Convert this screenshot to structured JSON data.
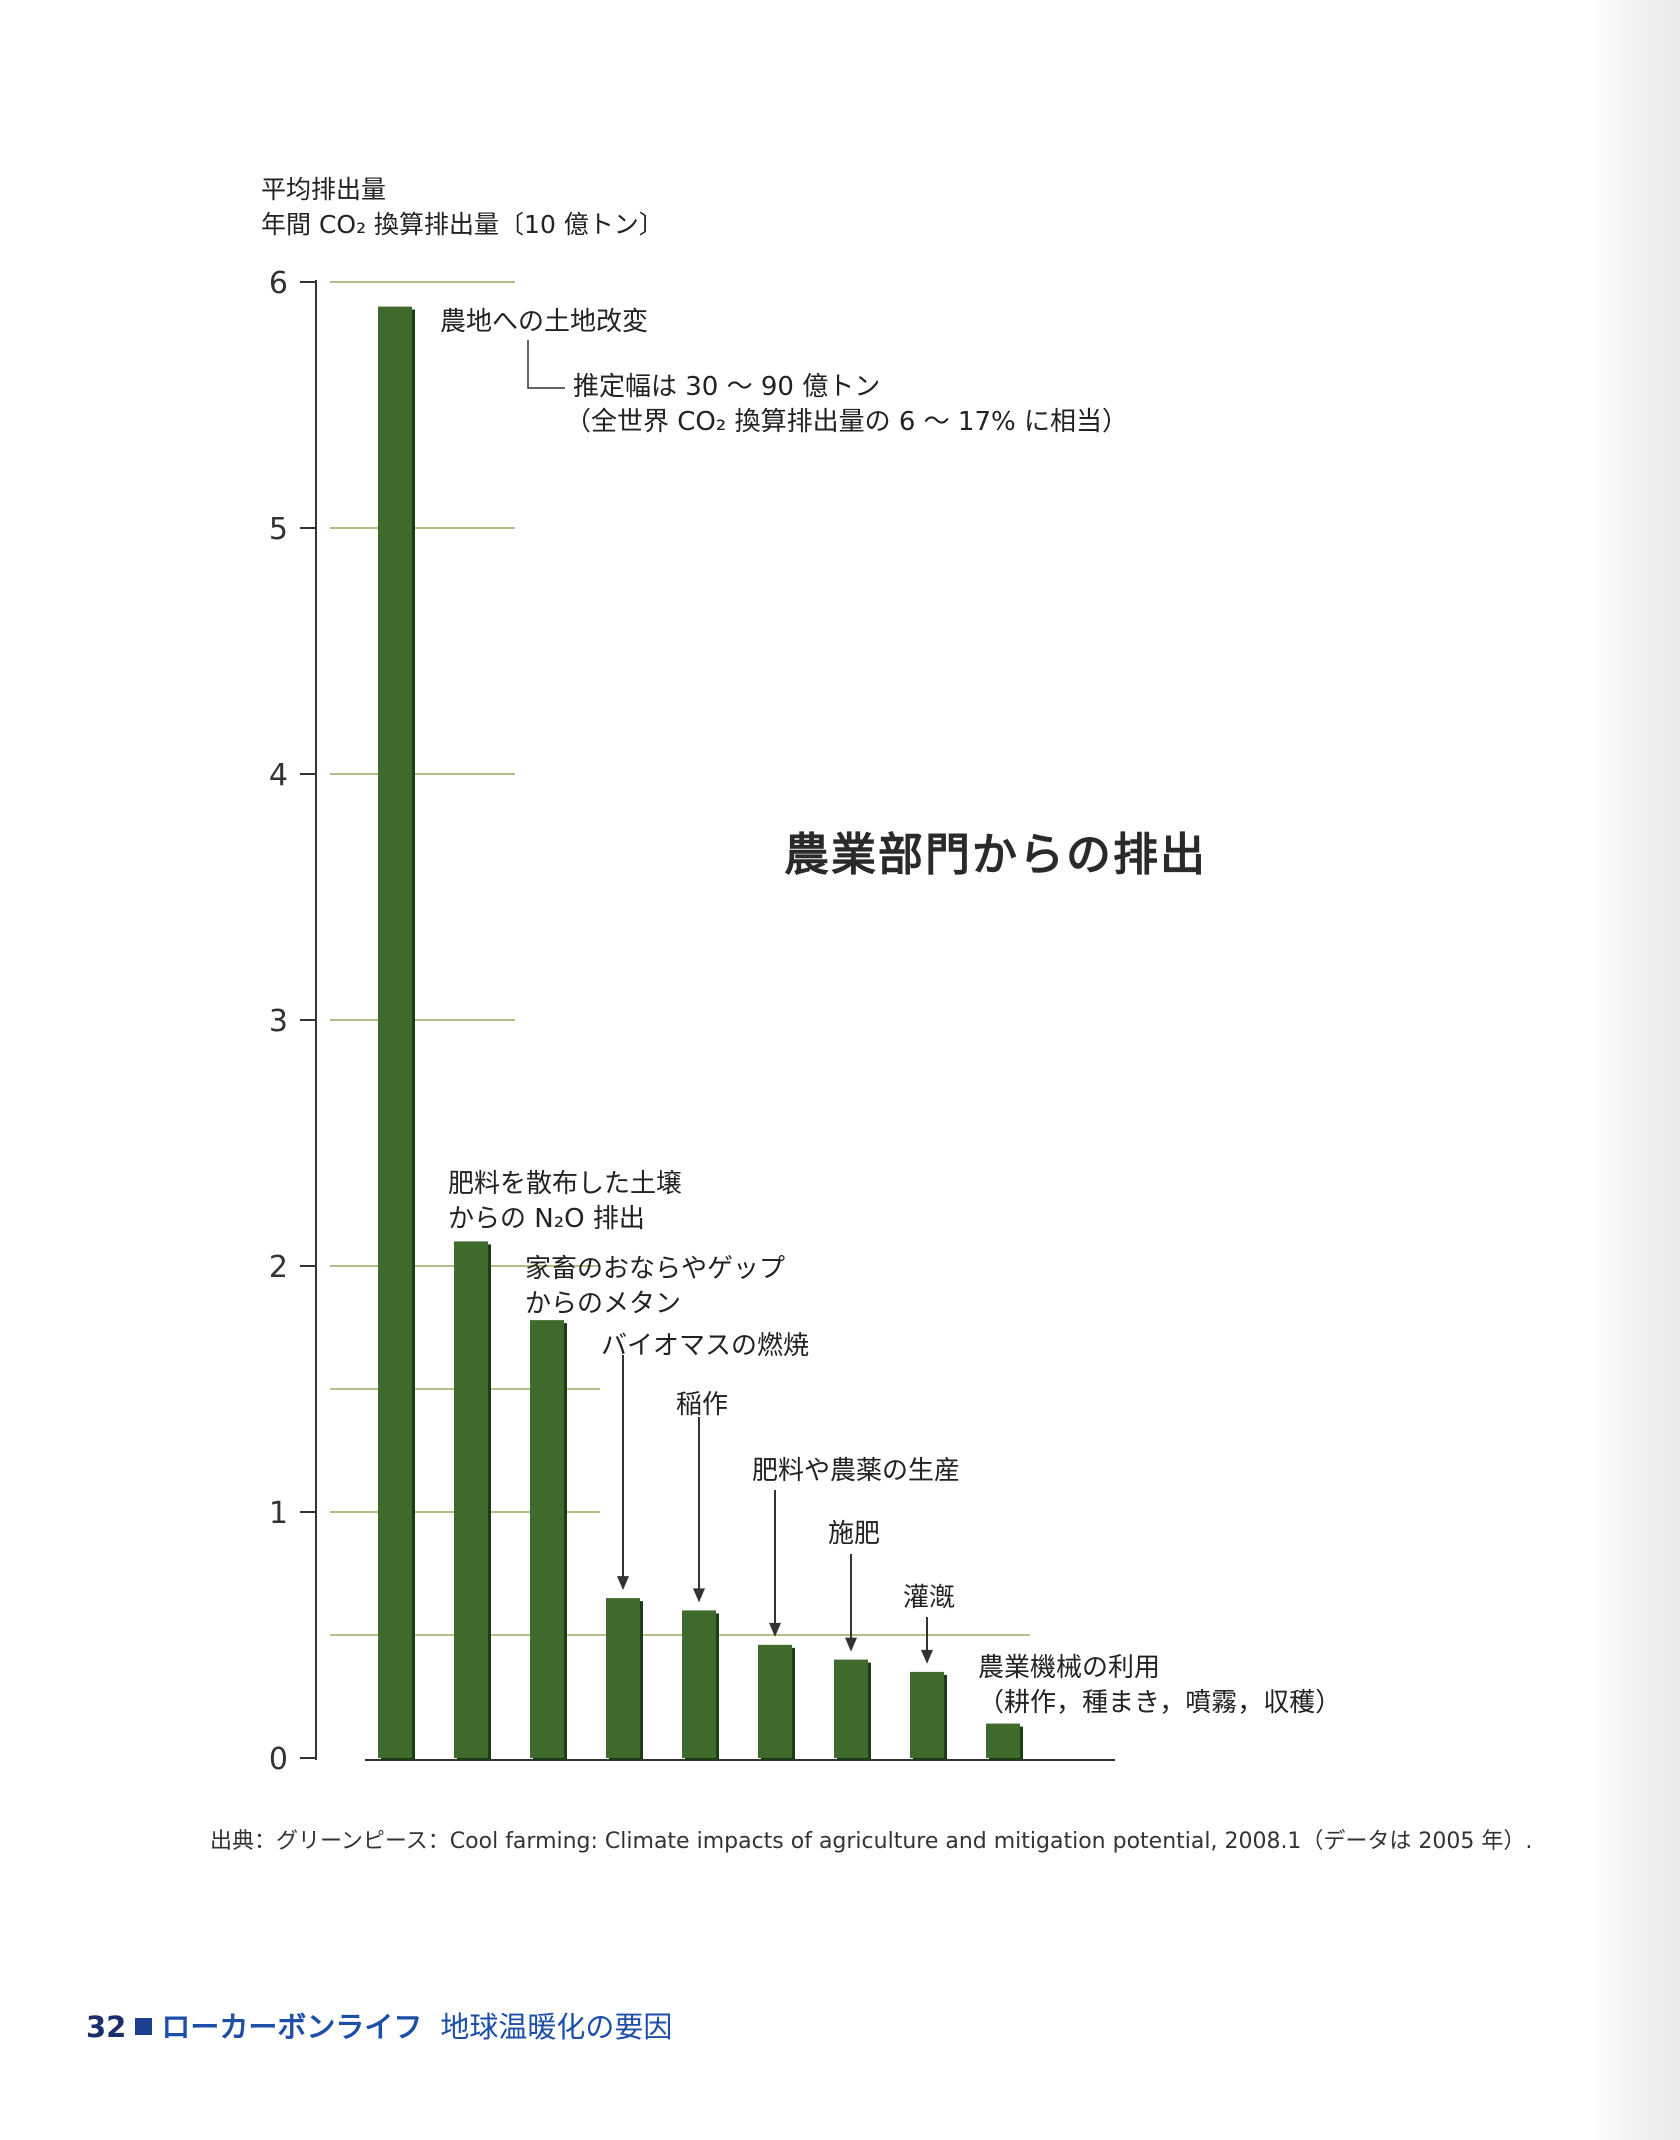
{
  "chart_data": {
    "type": "bar",
    "title": "農業部門からの排出",
    "ylabel": [
      "平均排出量",
      "年間 CO₂ 換算排出量〔10 億トン〕"
    ],
    "xlabel": "",
    "ylim": [
      0,
      6
    ],
    "yticks": [
      "0",
      "1",
      "2",
      "3",
      "4",
      "5",
      "6"
    ],
    "grid": true,
    "categories": [
      "農地への土地改変",
      "肥料を散布した土壌からの N₂O 排出",
      "家畜のおならやゲップからのメタン",
      "バイオマスの燃焼",
      "稲作",
      "肥料や農薬の生産",
      "施肥",
      "灌漑",
      "農業機械の利用（耕作，種まき，噴霧，収穫）"
    ],
    "values": [
      5.9,
      2.1,
      1.78,
      0.65,
      0.6,
      0.46,
      0.4,
      0.35,
      0.14
    ],
    "bar_color": "#3e6b2b",
    "annotations": {
      "land_use_line1": "農地への土地改変",
      "land_use_range": "推定幅は 30 ～ 90 億トン",
      "land_use_share": "（全世界 CO₂ 換算排出量の 6 ～ 17% に相当）",
      "fert_soil_line1": "肥料を散布した土壌",
      "fert_soil_line2": "からの N₂O 排出",
      "livestock_line1": "家畜のおならやゲップ",
      "livestock_line2": "からのメタン",
      "biomass": "バイオマスの燃焼",
      "rice": "稲作",
      "fert_prod": "肥料や農薬の生産",
      "fertilizing": "施肥",
      "irrigation": "灌漑",
      "machinery_line1": "農業機械の利用",
      "machinery_line2": "（耕作，種まき，噴霧，収穫）"
    }
  },
  "source": "出典：グリーンピース：Cool farming: Climate impacts of agriculture and mitigation potential, 2008.1（データは 2005 年）.",
  "footer": {
    "page_number": "32",
    "series": "ローカーボンライフ",
    "chapter": "地球温暖化の要因"
  }
}
